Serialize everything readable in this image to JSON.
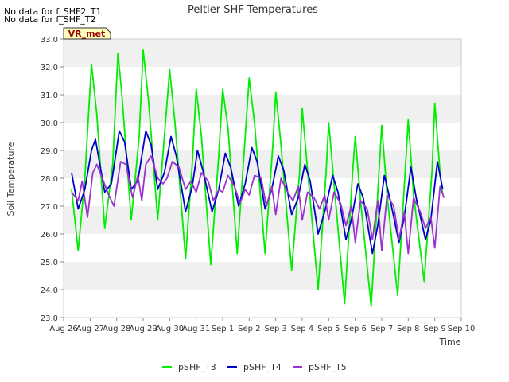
{
  "notes": [
    "No data for f_SHF2_T1",
    "No data for f_SHF_T2"
  ],
  "badge": "VR_met",
  "chart_data": {
    "type": "line",
    "title": "Peltier SHF Temperatures",
    "xlabel": "Time",
    "ylabel": "Soil Temperature",
    "ylim": [
      23.0,
      33.0
    ],
    "yticks": [
      "23.0",
      "24.0",
      "25.0",
      "26.0",
      "27.0",
      "28.0",
      "29.0",
      "30.0",
      "31.0",
      "32.0",
      "33.0"
    ],
    "xlim": [
      0,
      15
    ],
    "xticks": [
      "Aug 26",
      "Aug 27",
      "Aug 28",
      "Aug 29",
      "Aug 30",
      "Aug 31",
      "Sep 1",
      "Sep 2",
      "Sep 3",
      "Sep 4",
      "Sep 5",
      "Sep 6",
      "Sep 7",
      "Sep 8",
      "Sep 9",
      "Sep 10"
    ],
    "grid": "horizontal bands",
    "legend_position": "bottom-center",
    "series": [
      {
        "name": "pSHF_T3",
        "color": "#00ee00",
        "points": [
          [
            0.3,
            27.6
          ],
          [
            0.55,
            25.4
          ],
          [
            0.8,
            28.0
          ],
          [
            1.05,
            32.1
          ],
          [
            1.25,
            30.3
          ],
          [
            1.55,
            26.2
          ],
          [
            1.85,
            28.5
          ],
          [
            2.05,
            32.5
          ],
          [
            2.2,
            31.0
          ],
          [
            2.55,
            26.5
          ],
          [
            2.85,
            29.5
          ],
          [
            3.0,
            32.6
          ],
          [
            3.2,
            30.8
          ],
          [
            3.55,
            26.5
          ],
          [
            3.8,
            29.5
          ],
          [
            4.0,
            31.9
          ],
          [
            4.2,
            30.0
          ],
          [
            4.6,
            25.1
          ],
          [
            4.85,
            28.5
          ],
          [
            5.0,
            31.2
          ],
          [
            5.2,
            29.5
          ],
          [
            5.55,
            24.9
          ],
          [
            5.85,
            28.8
          ],
          [
            6.0,
            31.2
          ],
          [
            6.2,
            29.8
          ],
          [
            6.55,
            25.3
          ],
          [
            6.85,
            29.5
          ],
          [
            7.0,
            31.6
          ],
          [
            7.2,
            30.0
          ],
          [
            7.6,
            25.3
          ],
          [
            7.9,
            29.3
          ],
          [
            8.0,
            31.1
          ],
          [
            8.2,
            29.2
          ],
          [
            8.6,
            24.7
          ],
          [
            8.9,
            28.2
          ],
          [
            9.0,
            30.5
          ],
          [
            9.2,
            28.3
          ],
          [
            9.6,
            24.0
          ],
          [
            9.9,
            28.2
          ],
          [
            10.0,
            30.0
          ],
          [
            10.2,
            27.8
          ],
          [
            10.6,
            23.5
          ],
          [
            10.9,
            28.2
          ],
          [
            11.0,
            29.5
          ],
          [
            11.2,
            27.2
          ],
          [
            11.6,
            23.4
          ],
          [
            11.9,
            28.3
          ],
          [
            12.0,
            29.9
          ],
          [
            12.2,
            27.4
          ],
          [
            12.6,
            23.8
          ],
          [
            12.9,
            28.5
          ],
          [
            13.0,
            30.1
          ],
          [
            13.2,
            27.4
          ],
          [
            13.6,
            24.3
          ],
          [
            13.9,
            28.3
          ],
          [
            14.0,
            30.7
          ],
          [
            14.2,
            28.2
          ],
          [
            14.3,
            27.4
          ]
        ]
      },
      {
        "name": "pSHF_T4",
        "color": "#0000cc",
        "points": [
          [
            0.3,
            28.2
          ],
          [
            0.55,
            26.9
          ],
          [
            0.8,
            27.6
          ],
          [
            1.05,
            29.0
          ],
          [
            1.2,
            29.4
          ],
          [
            1.55,
            27.5
          ],
          [
            1.8,
            27.8
          ],
          [
            2.1,
            29.7
          ],
          [
            2.3,
            29.3
          ],
          [
            2.55,
            27.6
          ],
          [
            2.8,
            27.9
          ],
          [
            3.1,
            29.7
          ],
          [
            3.3,
            29.2
          ],
          [
            3.55,
            27.6
          ],
          [
            3.8,
            28.2
          ],
          [
            4.05,
            29.5
          ],
          [
            4.25,
            28.8
          ],
          [
            4.6,
            26.8
          ],
          [
            4.85,
            27.7
          ],
          [
            5.05,
            29.0
          ],
          [
            5.25,
            28.3
          ],
          [
            5.6,
            26.8
          ],
          [
            5.85,
            27.6
          ],
          [
            6.1,
            28.9
          ],
          [
            6.3,
            28.4
          ],
          [
            6.6,
            27.0
          ],
          [
            6.85,
            27.8
          ],
          [
            7.1,
            29.1
          ],
          [
            7.3,
            28.6
          ],
          [
            7.6,
            26.9
          ],
          [
            7.85,
            27.6
          ],
          [
            8.1,
            28.8
          ],
          [
            8.3,
            28.3
          ],
          [
            8.6,
            26.7
          ],
          [
            8.85,
            27.3
          ],
          [
            9.1,
            28.5
          ],
          [
            9.3,
            27.9
          ],
          [
            9.6,
            26.0
          ],
          [
            9.85,
            26.8
          ],
          [
            10.15,
            28.1
          ],
          [
            10.35,
            27.5
          ],
          [
            10.65,
            25.8
          ],
          [
            10.85,
            26.5
          ],
          [
            11.1,
            27.8
          ],
          [
            11.3,
            27.3
          ],
          [
            11.65,
            25.3
          ],
          [
            11.85,
            26.3
          ],
          [
            12.1,
            28.1
          ],
          [
            12.3,
            27.3
          ],
          [
            12.65,
            25.7
          ],
          [
            12.85,
            26.6
          ],
          [
            13.1,
            28.4
          ],
          [
            13.3,
            27.3
          ],
          [
            13.65,
            25.8
          ],
          [
            13.85,
            26.5
          ],
          [
            14.1,
            28.6
          ],
          [
            14.3,
            27.6
          ]
        ]
      },
      {
        "name": "pSHF_T5",
        "color": "#9933cc",
        "points": [
          [
            0.3,
            27.5
          ],
          [
            0.55,
            27.2
          ],
          [
            0.7,
            27.9
          ],
          [
            0.9,
            26.6
          ],
          [
            1.1,
            28.2
          ],
          [
            1.25,
            28.5
          ],
          [
            1.5,
            27.9
          ],
          [
            1.7,
            27.4
          ],
          [
            1.9,
            27.0
          ],
          [
            2.15,
            28.6
          ],
          [
            2.35,
            28.5
          ],
          [
            2.6,
            27.3
          ],
          [
            2.8,
            28.1
          ],
          [
            2.95,
            27.2
          ],
          [
            3.1,
            28.5
          ],
          [
            3.3,
            28.8
          ],
          [
            3.55,
            28.0
          ],
          [
            3.75,
            27.8
          ],
          [
            3.9,
            28.0
          ],
          [
            4.1,
            28.6
          ],
          [
            4.35,
            28.4
          ],
          [
            4.6,
            27.6
          ],
          [
            4.8,
            27.9
          ],
          [
            5.0,
            27.5
          ],
          [
            5.2,
            28.2
          ],
          [
            5.45,
            27.9
          ],
          [
            5.65,
            27.2
          ],
          [
            5.85,
            27.6
          ],
          [
            6.0,
            27.5
          ],
          [
            6.2,
            28.1
          ],
          [
            6.45,
            27.7
          ],
          [
            6.65,
            27.1
          ],
          [
            6.85,
            27.6
          ],
          [
            7.0,
            27.4
          ],
          [
            7.2,
            28.1
          ],
          [
            7.45,
            28.0
          ],
          [
            7.65,
            27.0
          ],
          [
            7.85,
            27.7
          ],
          [
            8.0,
            26.7
          ],
          [
            8.2,
            28.0
          ],
          [
            8.45,
            27.5
          ],
          [
            8.65,
            27.2
          ],
          [
            8.85,
            27.7
          ],
          [
            9.0,
            26.5
          ],
          [
            9.2,
            27.5
          ],
          [
            9.45,
            27.3
          ],
          [
            9.65,
            26.9
          ],
          [
            9.85,
            27.4
          ],
          [
            10.0,
            26.5
          ],
          [
            10.2,
            27.5
          ],
          [
            10.45,
            27.1
          ],
          [
            10.65,
            26.3
          ],
          [
            10.85,
            27.0
          ],
          [
            11.0,
            25.7
          ],
          [
            11.2,
            27.2
          ],
          [
            11.45,
            26.9
          ],
          [
            11.65,
            25.8
          ],
          [
            11.85,
            27.2
          ],
          [
            12.0,
            25.4
          ],
          [
            12.2,
            27.4
          ],
          [
            12.45,
            27.0
          ],
          [
            12.65,
            25.8
          ],
          [
            12.85,
            26.8
          ],
          [
            13.0,
            25.3
          ],
          [
            13.2,
            27.3
          ],
          [
            13.45,
            26.8
          ],
          [
            13.65,
            26.2
          ],
          [
            13.85,
            26.6
          ],
          [
            14.0,
            25.5
          ],
          [
            14.2,
            27.7
          ],
          [
            14.35,
            27.3
          ]
        ]
      }
    ]
  }
}
